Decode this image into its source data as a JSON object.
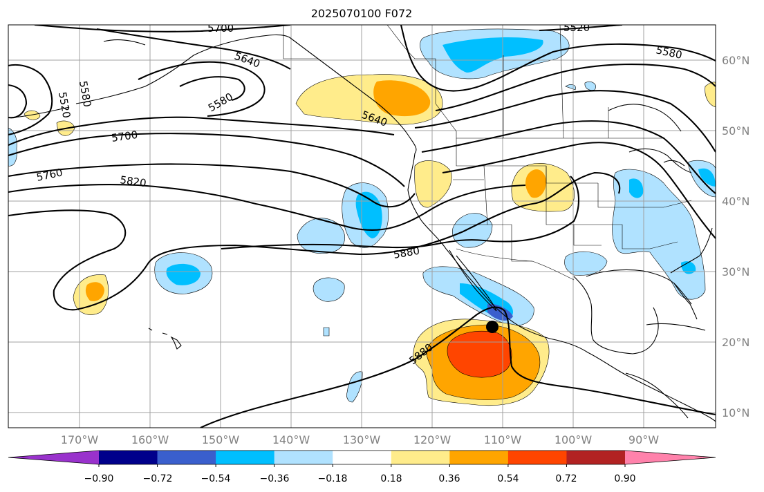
{
  "title": "2025070100 F072",
  "lon_labels": [
    "170°W",
    "160°W",
    "150°W",
    "140°W",
    "130°W",
    "120°W",
    "110°W",
    "100°W",
    "90°W"
  ],
  "lat_labels": [
    "60°N",
    "50°N",
    "40°N",
    "30°N",
    "20°N",
    "10°N"
  ],
  "colorbar": {
    "tick_labels": [
      "−0.90",
      "−0.72",
      "−0.54",
      "−0.36",
      "−0.18",
      "0.18",
      "0.36",
      "0.54",
      "0.72",
      "0.90"
    ],
    "colors": [
      "#9932cc",
      "#00008b",
      "#3a5fcd",
      "#00bfff",
      "#b0e2ff",
      "#ffffff",
      "#ffec8b",
      "#ffa500",
      "#ff4500",
      "#b22222",
      "#ff82ab"
    ]
  },
  "contour_labels": {
    "c5700_top": "5700",
    "c5640": "5640",
    "c5520_tr": "5520",
    "c5580_tr": "5580",
    "c5580_left": "5580",
    "c5520_left": "5520",
    "c5580_mid": "5580",
    "c5640_mid": "5640",
    "c5700": "5700",
    "c5760": "5760",
    "c5820": "5820",
    "c5880_a": "5880",
    "c5880_b": "5880"
  },
  "colors": {
    "coast": "#000000",
    "grid": "#a0a0a0",
    "contour": "#000000"
  }
}
